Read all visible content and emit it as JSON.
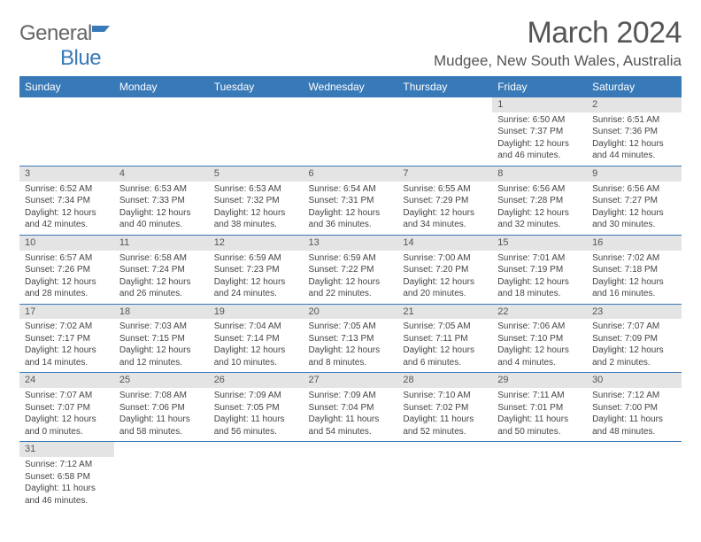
{
  "logo": {
    "text1": "General",
    "text2": "Blue"
  },
  "title": "March 2024",
  "location": "Mudgee, New South Wales, Australia",
  "headers": [
    "Sunday",
    "Monday",
    "Tuesday",
    "Wednesday",
    "Thursday",
    "Friday",
    "Saturday"
  ],
  "colors": {
    "accent": "#3879b8",
    "dayrow": "#e4e4e4",
    "text": "#444"
  },
  "weeks": [
    [
      null,
      null,
      null,
      null,
      null,
      {
        "n": "1",
        "sr": "6:50 AM",
        "ss": "7:37 PM",
        "dh": "12",
        "dm": "46"
      },
      {
        "n": "2",
        "sr": "6:51 AM",
        "ss": "7:36 PM",
        "dh": "12",
        "dm": "44"
      }
    ],
    [
      {
        "n": "3",
        "sr": "6:52 AM",
        "ss": "7:34 PM",
        "dh": "12",
        "dm": "42"
      },
      {
        "n": "4",
        "sr": "6:53 AM",
        "ss": "7:33 PM",
        "dh": "12",
        "dm": "40"
      },
      {
        "n": "5",
        "sr": "6:53 AM",
        "ss": "7:32 PM",
        "dh": "12",
        "dm": "38"
      },
      {
        "n": "6",
        "sr": "6:54 AM",
        "ss": "7:31 PM",
        "dh": "12",
        "dm": "36"
      },
      {
        "n": "7",
        "sr": "6:55 AM",
        "ss": "7:29 PM",
        "dh": "12",
        "dm": "34"
      },
      {
        "n": "8",
        "sr": "6:56 AM",
        "ss": "7:28 PM",
        "dh": "12",
        "dm": "32"
      },
      {
        "n": "9",
        "sr": "6:56 AM",
        "ss": "7:27 PM",
        "dh": "12",
        "dm": "30"
      }
    ],
    [
      {
        "n": "10",
        "sr": "6:57 AM",
        "ss": "7:26 PM",
        "dh": "12",
        "dm": "28"
      },
      {
        "n": "11",
        "sr": "6:58 AM",
        "ss": "7:24 PM",
        "dh": "12",
        "dm": "26"
      },
      {
        "n": "12",
        "sr": "6:59 AM",
        "ss": "7:23 PM",
        "dh": "12",
        "dm": "24"
      },
      {
        "n": "13",
        "sr": "6:59 AM",
        "ss": "7:22 PM",
        "dh": "12",
        "dm": "22"
      },
      {
        "n": "14",
        "sr": "7:00 AM",
        "ss": "7:20 PM",
        "dh": "12",
        "dm": "20"
      },
      {
        "n": "15",
        "sr": "7:01 AM",
        "ss": "7:19 PM",
        "dh": "12",
        "dm": "18"
      },
      {
        "n": "16",
        "sr": "7:02 AM",
        "ss": "7:18 PM",
        "dh": "12",
        "dm": "16"
      }
    ],
    [
      {
        "n": "17",
        "sr": "7:02 AM",
        "ss": "7:17 PM",
        "dh": "12",
        "dm": "14"
      },
      {
        "n": "18",
        "sr": "7:03 AM",
        "ss": "7:15 PM",
        "dh": "12",
        "dm": "12"
      },
      {
        "n": "19",
        "sr": "7:04 AM",
        "ss": "7:14 PM",
        "dh": "12",
        "dm": "10"
      },
      {
        "n": "20",
        "sr": "7:05 AM",
        "ss": "7:13 PM",
        "dh": "12",
        "dm": "8"
      },
      {
        "n": "21",
        "sr": "7:05 AM",
        "ss": "7:11 PM",
        "dh": "12",
        "dm": "6"
      },
      {
        "n": "22",
        "sr": "7:06 AM",
        "ss": "7:10 PM",
        "dh": "12",
        "dm": "4"
      },
      {
        "n": "23",
        "sr": "7:07 AM",
        "ss": "7:09 PM",
        "dh": "12",
        "dm": "2"
      }
    ],
    [
      {
        "n": "24",
        "sr": "7:07 AM",
        "ss": "7:07 PM",
        "dh": "12",
        "dm": "0"
      },
      {
        "n": "25",
        "sr": "7:08 AM",
        "ss": "7:06 PM",
        "dh": "11",
        "dm": "58"
      },
      {
        "n": "26",
        "sr": "7:09 AM",
        "ss": "7:05 PM",
        "dh": "11",
        "dm": "56"
      },
      {
        "n": "27",
        "sr": "7:09 AM",
        "ss": "7:04 PM",
        "dh": "11",
        "dm": "54"
      },
      {
        "n": "28",
        "sr": "7:10 AM",
        "ss": "7:02 PM",
        "dh": "11",
        "dm": "52"
      },
      {
        "n": "29",
        "sr": "7:11 AM",
        "ss": "7:01 PM",
        "dh": "11",
        "dm": "50"
      },
      {
        "n": "30",
        "sr": "7:12 AM",
        "ss": "7:00 PM",
        "dh": "11",
        "dm": "48"
      }
    ],
    [
      {
        "n": "31",
        "sr": "7:12 AM",
        "ss": "6:58 PM",
        "dh": "11",
        "dm": "46"
      },
      null,
      null,
      null,
      null,
      null,
      null
    ]
  ]
}
